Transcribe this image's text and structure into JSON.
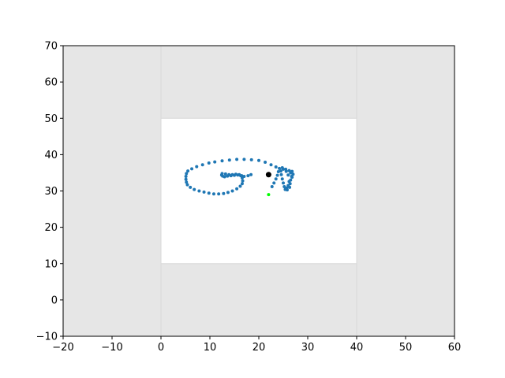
{
  "chart_data": {
    "type": "scatter",
    "title": "",
    "xlabel": "",
    "ylabel": "",
    "xlim": [
      -20,
      60
    ],
    "ylim": [
      -10,
      70
    ],
    "x_ticks": [
      -20,
      -10,
      0,
      10,
      20,
      30,
      40,
      50,
      60
    ],
    "y_ticks": [
      -10,
      0,
      10,
      20,
      30,
      40,
      50,
      60,
      70
    ],
    "x_tick_labels": [
      "−20",
      "−10",
      "0",
      "10",
      "20",
      "30",
      "40",
      "50",
      "60"
    ],
    "y_tick_labels": [
      "−10",
      "0",
      "10",
      "20",
      "30",
      "40",
      "50",
      "60",
      "70"
    ],
    "grid": false,
    "background_color": "#e6e6e6",
    "region": {
      "x": [
        0,
        40
      ],
      "y": [
        10,
        50
      ],
      "color": "#ffffff"
    },
    "region_border_color": "#d8d8d8",
    "series": [
      {
        "color": "#1f77b4",
        "marker_size": 4,
        "points": [
          [
            22.7,
            31.2
          ],
          [
            23.1,
            32.2
          ],
          [
            23.5,
            33.3
          ],
          [
            23.8,
            34.3
          ],
          [
            24.0,
            35.3
          ],
          [
            24.2,
            36.2
          ],
          [
            24.8,
            36.4
          ],
          [
            25.5,
            36.0
          ],
          [
            26.2,
            35.6
          ],
          [
            26.8,
            35.4
          ],
          [
            27.0,
            34.6
          ],
          [
            26.8,
            33.8
          ],
          [
            26.5,
            33.0
          ],
          [
            26.4,
            32.0
          ],
          [
            26.3,
            31.0
          ],
          [
            25.8,
            30.3
          ],
          [
            25.4,
            30.4
          ],
          [
            25.2,
            31.2
          ],
          [
            25.0,
            32.2
          ],
          [
            24.8,
            33.3
          ],
          [
            24.6,
            34.5
          ],
          [
            24.5,
            35.5
          ],
          [
            25.0,
            36.0
          ],
          [
            25.6,
            35.4
          ],
          [
            26.0,
            34.4
          ],
          [
            26.5,
            35.0
          ],
          [
            26.7,
            34.0
          ],
          [
            26.2,
            32.6
          ],
          [
            26.0,
            31.5
          ],
          [
            25.7,
            30.8
          ],
          [
            23.5,
            36.6
          ],
          [
            22.5,
            37.2
          ],
          [
            21.3,
            37.9
          ],
          [
            20.0,
            38.4
          ],
          [
            18.5,
            38.6
          ],
          [
            17.0,
            38.7
          ],
          [
            15.5,
            38.7
          ],
          [
            14.0,
            38.5
          ],
          [
            12.5,
            38.3
          ],
          [
            11.0,
            38.0
          ],
          [
            9.8,
            37.7
          ],
          [
            8.5,
            37.2
          ],
          [
            7.3,
            36.7
          ],
          [
            6.3,
            36.1
          ],
          [
            5.5,
            35.5
          ],
          [
            5.2,
            34.8
          ],
          [
            5.1,
            34.0
          ],
          [
            5.1,
            33.2
          ],
          [
            5.2,
            32.4
          ],
          [
            5.4,
            31.7
          ],
          [
            6.0,
            31.0
          ],
          [
            6.8,
            30.4
          ],
          [
            7.8,
            30.0
          ],
          [
            8.8,
            29.7
          ],
          [
            9.8,
            29.4
          ],
          [
            10.8,
            29.2
          ],
          [
            11.8,
            29.2
          ],
          [
            12.8,
            29.3
          ],
          [
            13.7,
            29.6
          ],
          [
            14.6,
            30.0
          ],
          [
            15.5,
            30.6
          ],
          [
            16.2,
            31.3
          ],
          [
            16.6,
            32.0
          ],
          [
            16.7,
            32.8
          ],
          [
            16.6,
            33.6
          ],
          [
            16.3,
            34.2
          ],
          [
            15.7,
            34.4
          ],
          [
            15.0,
            34.3
          ],
          [
            14.3,
            34.2
          ],
          [
            13.6,
            34.1
          ],
          [
            13.0,
            33.9
          ],
          [
            12.6,
            34.1
          ],
          [
            12.4,
            34.4
          ],
          [
            12.5,
            34.8
          ],
          [
            13.2,
            34.7
          ],
          [
            13.9,
            34.5
          ],
          [
            14.6,
            34.5
          ],
          [
            15.3,
            34.6
          ],
          [
            16.0,
            34.5
          ],
          [
            16.5,
            34.2
          ],
          [
            17.0,
            34.0
          ],
          [
            17.8,
            34.2
          ],
          [
            18.4,
            34.5
          ]
        ]
      },
      {
        "color": "#00ff00",
        "marker_size": 4,
        "points": [
          [
            22.0,
            29.0
          ]
        ]
      },
      {
        "color": "#000000",
        "marker_size": 7,
        "points": [
          [
            22.0,
            34.5
          ]
        ]
      }
    ]
  }
}
